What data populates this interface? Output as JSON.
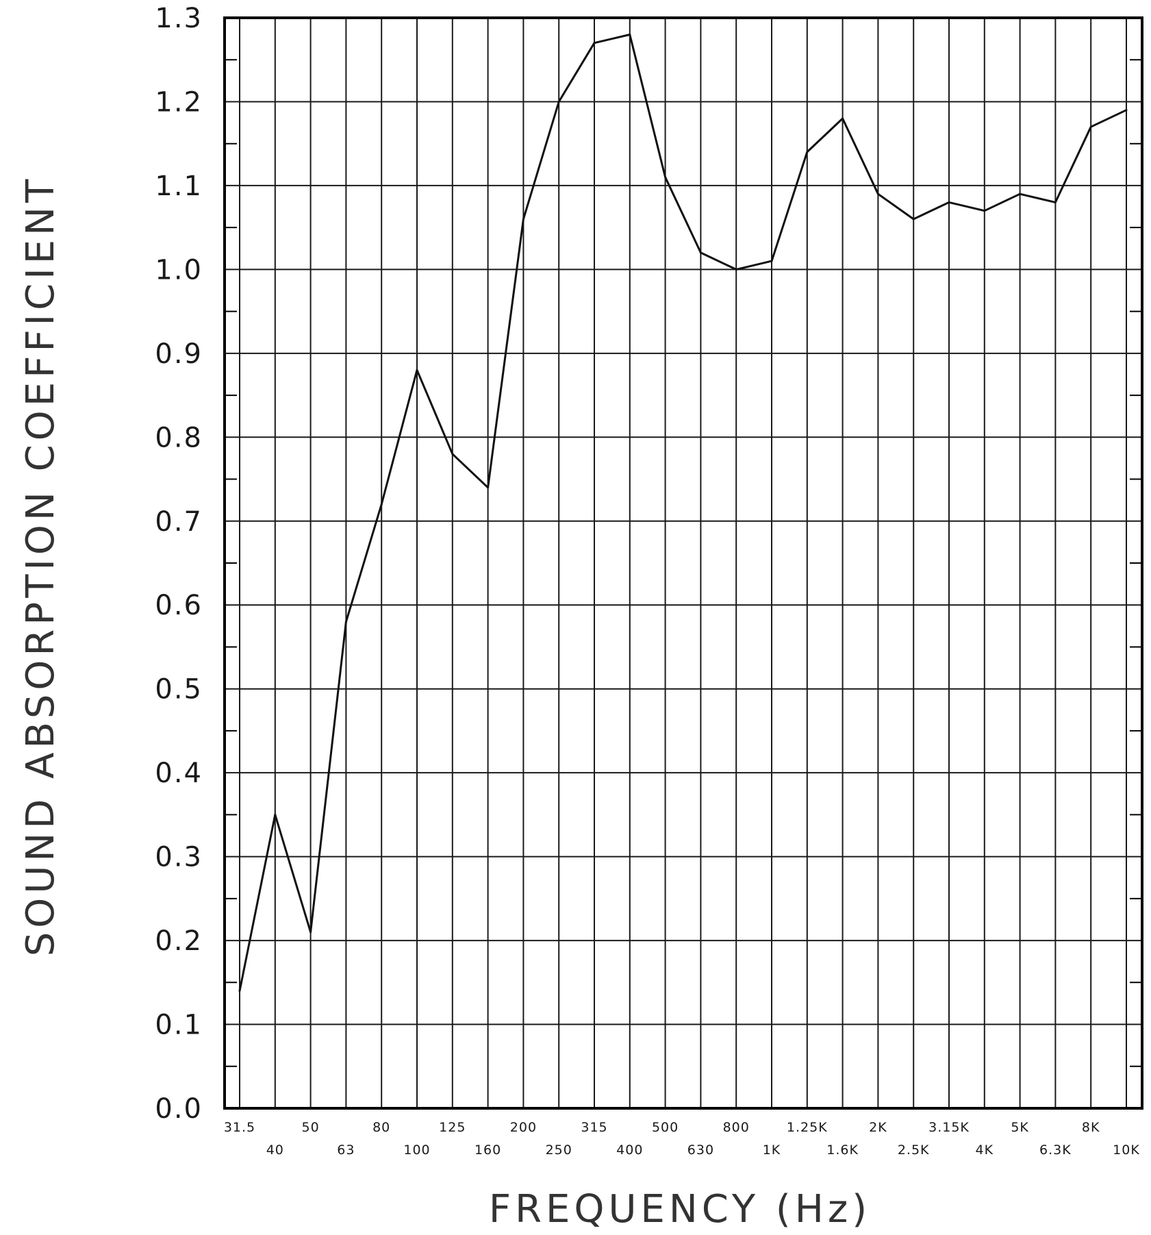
{
  "chart_data": {
    "type": "line",
    "title": "",
    "xlabel": "FREQUENCY (Hz)",
    "ylabel": "SOUND ABSORPTION COEFFICIENT",
    "ylim": [
      0.0,
      1.3
    ],
    "y_ticks": [
      "0.0",
      "0.1",
      "0.2",
      "0.3",
      "0.4",
      "0.5",
      "0.6",
      "0.7",
      "0.8",
      "0.9",
      "1.0",
      "1.1",
      "1.2",
      "1.3"
    ],
    "categories": [
      "31.5",
      "40",
      "50",
      "63",
      "80",
      "100",
      "125",
      "160",
      "200",
      "250",
      "315",
      "400",
      "500",
      "630",
      "800",
      "1K",
      "1.25K",
      "1.6K",
      "2K",
      "2.5K",
      "3.15K",
      "4K",
      "5K",
      "6.3K",
      "8K",
      "10K"
    ],
    "values": [
      0.14,
      0.35,
      0.21,
      0.58,
      0.72,
      0.88,
      0.78,
      0.74,
      1.06,
      1.2,
      1.27,
      1.28,
      1.11,
      1.02,
      1.0,
      1.01,
      1.14,
      1.18,
      1.09,
      1.06,
      1.08,
      1.07,
      1.09,
      1.08,
      1.17,
      1.19
    ],
    "grid": true,
    "colors": {
      "line": "#111111",
      "grid": "#1a1a1a",
      "frame": "#000000"
    }
  }
}
